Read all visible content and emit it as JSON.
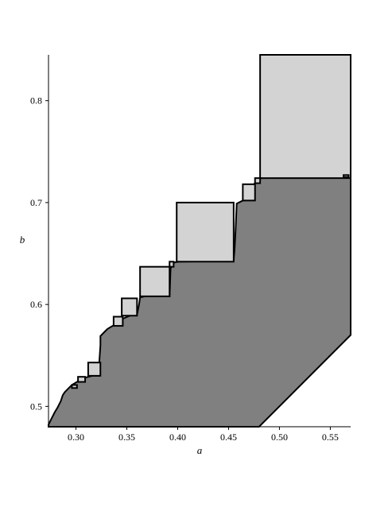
{
  "chart_data": {
    "type": "area",
    "title": "",
    "xlabel": "a",
    "ylabel": "b",
    "xlim": [
      0.273,
      0.57
    ],
    "ylim": [
      0.48,
      0.845
    ],
    "xticks": [
      "0.30",
      "0.35",
      "0.40",
      "0.45",
      "0.50",
      "0.55"
    ],
    "yticks": [
      "0.5",
      "0.6",
      "0.7",
      "0.8"
    ],
    "grid": false,
    "legend": "none",
    "colors": {
      "dark_region": "#808080",
      "light_region": "#d3d3d3",
      "outline": "#000000"
    },
    "dark_region": {
      "name": "",
      "points": [
        [
          0.273,
          0.48
        ],
        [
          0.273,
          0.482
        ],
        [
          0.276,
          0.488
        ],
        [
          0.279,
          0.494
        ],
        [
          0.282,
          0.499
        ],
        [
          0.285,
          0.505
        ],
        [
          0.287,
          0.511
        ],
        [
          0.289,
          0.514
        ],
        [
          0.292,
          0.517
        ],
        [
          0.296,
          0.521
        ],
        [
          0.301,
          0.524
        ],
        [
          0.305,
          0.527
        ],
        [
          0.316,
          0.53
        ],
        [
          0.322,
          0.53
        ],
        [
          0.323,
          0.545
        ],
        [
          0.324,
          0.56
        ],
        [
          0.324,
          0.569
        ],
        [
          0.327,
          0.572
        ],
        [
          0.331,
          0.576
        ],
        [
          0.336,
          0.579
        ],
        [
          0.341,
          0.582
        ],
        [
          0.346,
          0.586
        ],
        [
          0.353,
          0.589
        ],
        [
          0.36,
          0.59
        ],
        [
          0.362,
          0.6
        ],
        [
          0.363,
          0.607
        ],
        [
          0.368,
          0.608
        ],
        [
          0.392,
          0.608
        ],
        [
          0.393,
          0.635
        ],
        [
          0.395,
          0.641
        ],
        [
          0.401,
          0.642
        ],
        [
          0.455,
          0.643
        ],
        [
          0.456,
          0.655
        ],
        [
          0.457,
          0.675
        ],
        [
          0.458,
          0.699
        ],
        [
          0.464,
          0.702
        ],
        [
          0.474,
          0.703
        ],
        [
          0.475,
          0.718
        ],
        [
          0.478,
          0.722
        ],
        [
          0.482,
          0.724
        ],
        [
          0.57,
          0.725
        ],
        [
          0.57,
          0.57
        ],
        [
          0.48,
          0.48
        ]
      ]
    },
    "light_regions": [
      {
        "x": [
          0.481,
          0.57
        ],
        "y": [
          0.724,
          0.845
        ]
      },
      {
        "x": [
          0.399,
          0.455
        ],
        "y": [
          0.642,
          0.7
        ]
      },
      {
        "x": [
          0.363,
          0.392
        ],
        "y": [
          0.608,
          0.637
        ]
      },
      {
        "x": [
          0.464,
          0.476
        ],
        "y": [
          0.702,
          0.718
        ]
      },
      {
        "x": [
          0.345,
          0.36
        ],
        "y": [
          0.589,
          0.606
        ]
      },
      {
        "x": [
          0.312,
          0.324
        ],
        "y": [
          0.53,
          0.543
        ]
      },
      {
        "x": [
          0.337,
          0.346
        ],
        "y": [
          0.579,
          0.588
        ]
      },
      {
        "x": [
          0.302,
          0.309
        ],
        "y": [
          0.524,
          0.529
        ]
      },
      {
        "x": [
          0.296,
          0.301
        ],
        "y": [
          0.518,
          0.521
        ]
      },
      {
        "x": [
          0.476,
          0.481
        ],
        "y": [
          0.719,
          0.724
        ]
      },
      {
        "x": [
          0.392,
          0.396
        ],
        "y": [
          0.637,
          0.642
        ]
      },
      {
        "x": [
          0.563,
          0.568
        ],
        "y": [
          0.725,
          0.727
        ]
      }
    ]
  }
}
